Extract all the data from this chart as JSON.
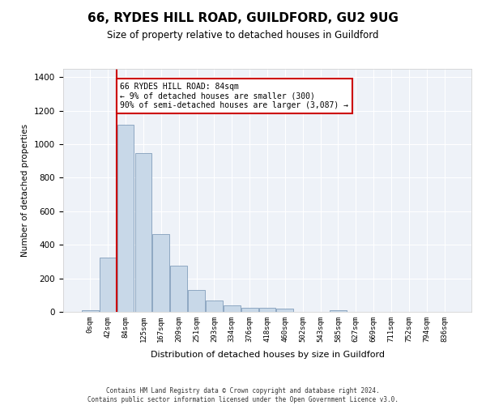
{
  "title": "66, RYDES HILL ROAD, GUILDFORD, GU2 9UG",
  "subtitle": "Size of property relative to detached houses in Guildford",
  "xlabel": "Distribution of detached houses by size in Guildford",
  "ylabel": "Number of detached properties",
  "bin_labels": [
    "0sqm",
    "42sqm",
    "84sqm",
    "125sqm",
    "167sqm",
    "209sqm",
    "251sqm",
    "293sqm",
    "334sqm",
    "376sqm",
    "418sqm",
    "460sqm",
    "502sqm",
    "543sqm",
    "585sqm",
    "627sqm",
    "669sqm",
    "711sqm",
    "752sqm",
    "794sqm",
    "836sqm"
  ],
  "bar_heights": [
    10,
    325,
    1115,
    945,
    465,
    275,
    130,
    70,
    40,
    22,
    25,
    18,
    0,
    0,
    10,
    0,
    0,
    0,
    0,
    0,
    0
  ],
  "bar_color": "#c8d8e8",
  "bar_edge_color": "#7090b0",
  "vline_color": "#cc0000",
  "annotation_text": "66 RYDES HILL ROAD: 84sqm\n← 9% of detached houses are smaller (300)\n90% of semi-detached houses are larger (3,087) →",
  "annotation_box_color": "#cc0000",
  "ylim": [
    0,
    1450
  ],
  "yticks": [
    0,
    200,
    400,
    600,
    800,
    1000,
    1200,
    1400
  ],
  "bg_color": "#eef2f8",
  "footer_line1": "Contains HM Land Registry data © Crown copyright and database right 2024.",
  "footer_line2": "Contains public sector information licensed under the Open Government Licence v3.0."
}
